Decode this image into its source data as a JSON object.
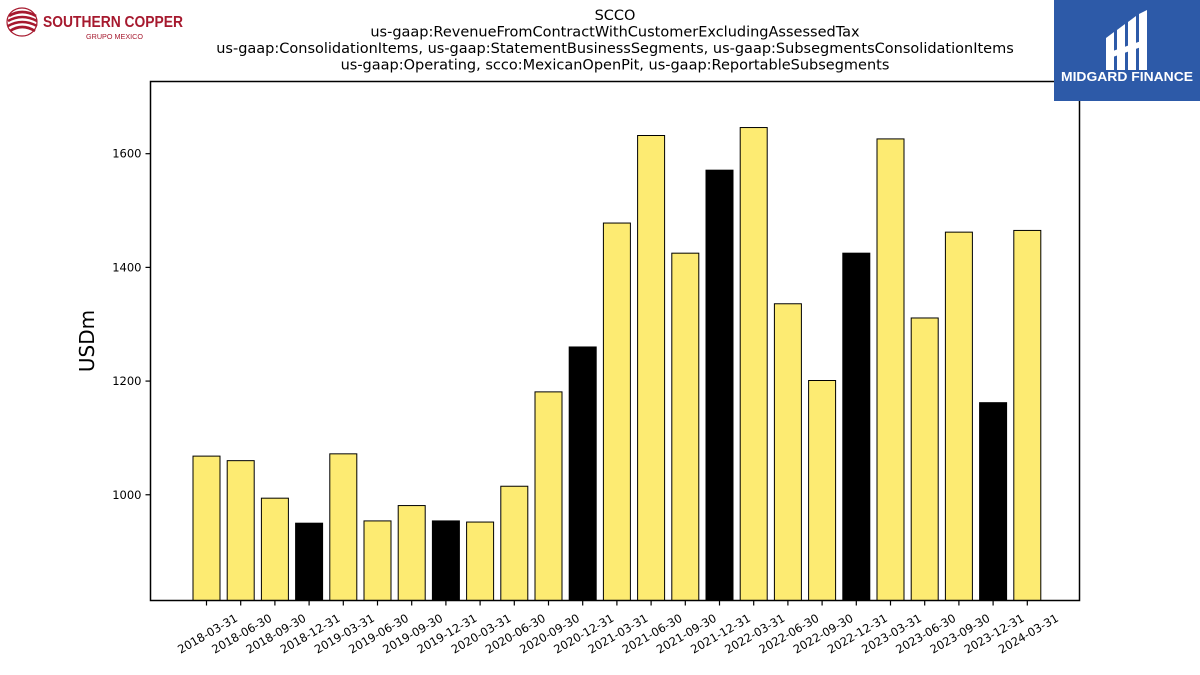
{
  "logos": {
    "left": {
      "name": "SOUTHERN COPPER",
      "sub": "GRUPO MEXICO",
      "color": "#a6192e"
    },
    "right": {
      "name": "MIDGARD FINANCE",
      "bg": "#2d5aa8",
      "fg": "#ffffff"
    }
  },
  "chart_data": {
    "type": "bar",
    "title": "SCCO",
    "subtitle": [
      "us-gaap:RevenueFromContractWithCustomerExcludingAssessedTax",
      "us-gaap:ConsolidationItems, us-gaap:StatementBusinessSegments, us-gaap:SubsegmentsConsolidationItems",
      "us-gaap:Operating, scco:MexicanOpenPit, us-gaap:ReportableSubsegments"
    ],
    "xlabel": "",
    "ylabel": "USDm",
    "ylim": [
      814,
      1727
    ],
    "yticks": [
      1000,
      1200,
      1400,
      1600
    ],
    "grid": false,
    "categories": [
      "2018-03-31",
      "2018-06-30",
      "2018-09-30",
      "2018-12-31",
      "2019-03-31",
      "2019-06-30",
      "2019-09-30",
      "2019-12-31",
      "2020-03-31",
      "2020-06-30",
      "2020-09-30",
      "2020-12-31",
      "2021-03-31",
      "2021-06-30",
      "2021-09-30",
      "2021-12-31",
      "2022-03-31",
      "2022-06-30",
      "2022-09-30",
      "2022-12-31",
      "2023-03-31",
      "2023-06-30",
      "2023-09-30",
      "2023-12-31",
      "2024-03-31"
    ],
    "values": [
      1068,
      1060,
      994,
      950,
      1072,
      954,
      981,
      954,
      952,
      1015,
      1181,
      1260,
      1478,
      1632,
      1425,
      1571,
      1646,
      1336,
      1201,
      1425,
      1626,
      1311,
      1462,
      1162,
      1465
    ],
    "colors": {
      "quarter": "#fdeb72",
      "year_end": "#000000",
      "edge": "#000000"
    }
  }
}
